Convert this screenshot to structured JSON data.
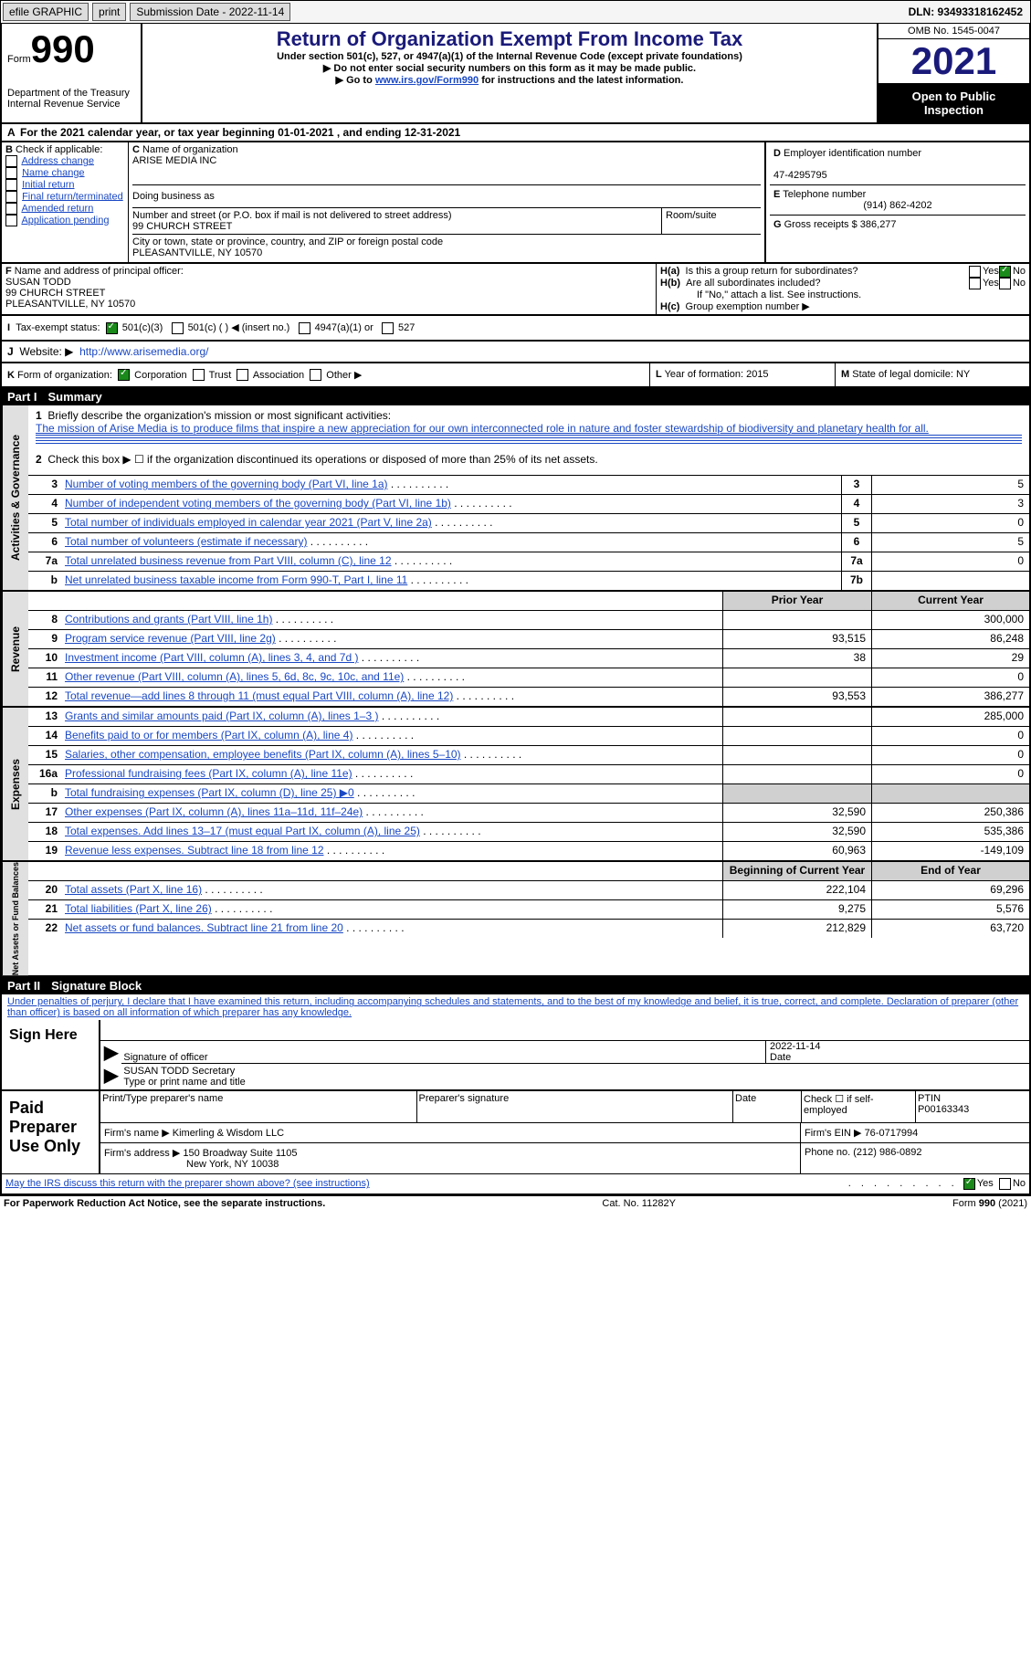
{
  "topbar": {
    "efile_label": "efile GRAPHIC",
    "print_btn": "print",
    "submission_label": "Submission Date - 2022-11-14",
    "dln": "DLN: 93493318162452"
  },
  "header": {
    "form_label": "Form",
    "form_no": "990",
    "dept": "Department of the Treasury",
    "irs": "Internal Revenue Service",
    "title": "Return of Organization Exempt From Income Tax",
    "subtitle": "Under section 501(c), 527, or 4947(a)(1) of the Internal Revenue Code (except private foundations)",
    "note1": "Do not enter social security numbers on this form as it may be made public.",
    "note2_pre": "Go to ",
    "note2_link": "www.irs.gov/Form990",
    "note2_post": " for instructions and the latest information.",
    "omb": "OMB No. 1545-0047",
    "year": "2021",
    "open": "Open to Public Inspection"
  },
  "line_a": "For the 2021 calendar year, or tax year beginning 01-01-2021   , and ending 12-31-2021",
  "box_b": {
    "label": "Check if applicable:",
    "items": [
      "Address change",
      "Name change",
      "Initial return",
      "Final return/terminated",
      "Amended return",
      "Application pending"
    ]
  },
  "box_c": {
    "name_label": "Name of organization",
    "name": "ARISE MEDIA INC",
    "dba_label": "Doing business as",
    "dba": "",
    "street_label": "Number and street (or P.O. box if mail is not delivered to street address)",
    "street": "99 CHURCH STREET",
    "room_label": "Room/suite",
    "room": "",
    "city_label": "City or town, state or province, country, and ZIP or foreign postal code",
    "city": "PLEASANTVILLE, NY  10570"
  },
  "box_d": {
    "label": "Employer identification number",
    "val": "47-4295795"
  },
  "box_e": {
    "label": "Telephone number",
    "val": "(914) 862-4202"
  },
  "box_g": {
    "label": "Gross receipts $",
    "val": "386,277"
  },
  "box_f": {
    "label": "Name and address of principal officer:",
    "name": "SUSAN TODD",
    "street": "99 CHURCH STREET",
    "city": "PLEASANTVILLE, NY  10570"
  },
  "box_h": {
    "ha": "Is this a group return for subordinates?",
    "hb": "Are all subordinates included?",
    "hb_note": "If \"No,\" attach a list. See instructions.",
    "hc": "Group exemption number ▶"
  },
  "box_i": {
    "label": "Tax-exempt status:",
    "opts": [
      "501(c)(3)",
      "501(c) (  ) ◀ (insert no.)",
      "4947(a)(1) or",
      "527"
    ]
  },
  "box_j": {
    "label": "Website: ▶",
    "val": "http://www.arisemedia.org/"
  },
  "box_k": {
    "label": "Form of organization:",
    "opts": [
      "Corporation",
      "Trust",
      "Association",
      "Other ▶"
    ]
  },
  "box_l": {
    "label": "Year of formation:",
    "val": "2015"
  },
  "box_m": {
    "label": "State of legal domicile:",
    "val": "NY"
  },
  "part1": {
    "title": "Summary",
    "q1_label": "Briefly describe the organization's mission or most significant activities:",
    "q1_text": "The mission of Arise Media is to produce films that inspire a new appreciation for our own interconnected role in nature and foster stewardship of biodiversity and planetary health for all.",
    "q2": "Check this box ▶ ☐ if the organization discontinued its operations or disposed of more than 25% of its net assets.",
    "rows_gov": [
      {
        "n": "3",
        "d": "Number of voting members of the governing body (Part VI, line 1a)",
        "box": "3",
        "v": "5"
      },
      {
        "n": "4",
        "d": "Number of independent voting members of the governing body (Part VI, line 1b)",
        "box": "4",
        "v": "3"
      },
      {
        "n": "5",
        "d": "Total number of individuals employed in calendar year 2021 (Part V, line 2a)",
        "box": "5",
        "v": "0"
      },
      {
        "n": "6",
        "d": "Total number of volunteers (estimate if necessary)",
        "box": "6",
        "v": "5"
      },
      {
        "n": "7a",
        "d": "Total unrelated business revenue from Part VIII, column (C), line 12",
        "box": "7a",
        "v": "0"
      },
      {
        "n": "b",
        "d": "Net unrelated business taxable income from Form 990-T, Part I, line 11",
        "box": "7b",
        "v": ""
      }
    ],
    "col_prior": "Prior Year",
    "col_curr": "Current Year",
    "rows_rev": [
      {
        "n": "8",
        "d": "Contributions and grants (Part VIII, line 1h)",
        "p": "",
        "c": "300,000"
      },
      {
        "n": "9",
        "d": "Program service revenue (Part VIII, line 2g)",
        "p": "93,515",
        "c": "86,248"
      },
      {
        "n": "10",
        "d": "Investment income (Part VIII, column (A), lines 3, 4, and 7d )",
        "p": "38",
        "c": "29"
      },
      {
        "n": "11",
        "d": "Other revenue (Part VIII, column (A), lines 5, 6d, 8c, 9c, 10c, and 11e)",
        "p": "",
        "c": "0"
      },
      {
        "n": "12",
        "d": "Total revenue—add lines 8 through 11 (must equal Part VIII, column (A), line 12)",
        "p": "93,553",
        "c": "386,277"
      }
    ],
    "rows_exp": [
      {
        "n": "13",
        "d": "Grants and similar amounts paid (Part IX, column (A), lines 1–3 )",
        "p": "",
        "c": "285,000"
      },
      {
        "n": "14",
        "d": "Benefits paid to or for members (Part IX, column (A), line 4)",
        "p": "",
        "c": "0"
      },
      {
        "n": "15",
        "d": "Salaries, other compensation, employee benefits (Part IX, column (A), lines 5–10)",
        "p": "",
        "c": "0"
      },
      {
        "n": "16a",
        "d": "Professional fundraising fees (Part IX, column (A), line 11e)",
        "p": "",
        "c": "0"
      },
      {
        "n": "b",
        "d": "Total fundraising expenses (Part IX, column (D), line 25) ▶0",
        "p": "shade",
        "c": "shade"
      },
      {
        "n": "17",
        "d": "Other expenses (Part IX, column (A), lines 11a–11d, 11f–24e)",
        "p": "32,590",
        "c": "250,386"
      },
      {
        "n": "18",
        "d": "Total expenses. Add lines 13–17 (must equal Part IX, column (A), line 25)",
        "p": "32,590",
        "c": "535,386"
      },
      {
        "n": "19",
        "d": "Revenue less expenses. Subtract line 18 from line 12",
        "p": "60,963",
        "c": "-149,109"
      }
    ],
    "col_begin": "Beginning of Current Year",
    "col_end": "End of Year",
    "rows_net": [
      {
        "n": "20",
        "d": "Total assets (Part X, line 16)",
        "p": "222,104",
        "c": "69,296"
      },
      {
        "n": "21",
        "d": "Total liabilities (Part X, line 26)",
        "p": "9,275",
        "c": "5,576"
      },
      {
        "n": "22",
        "d": "Net assets or fund balances. Subtract line 21 from line 20",
        "p": "212,829",
        "c": "63,720"
      }
    ],
    "side_labels": {
      "gov": "Activities & Governance",
      "rev": "Revenue",
      "exp": "Expenses",
      "net": "Net Assets or Fund Balances"
    }
  },
  "part2": {
    "title": "Signature Block",
    "decl": "Under penalties of perjury, I declare that I have examined this return, including accompanying schedules and statements, and to the best of my knowledge and belief, it is true, correct, and complete. Declaration of preparer (other than officer) is based on all information of which preparer has any knowledge.",
    "sign_here": "Sign Here",
    "sig_officer_label": "Signature of officer",
    "sig_date": "2022-11-14",
    "date_label": "Date",
    "officer_name": "SUSAN TODD Secretary",
    "officer_type_label": "Type or print name and title",
    "paid_label": "Paid Preparer Use Only",
    "prep_name_label": "Print/Type preparer's name",
    "prep_sig_label": "Preparer's signature",
    "prep_date_label": "Date",
    "check_self": "Check ☐ if self-employed",
    "ptin_label": "PTIN",
    "ptin": "P00163343",
    "firm_name_label": "Firm's name ▶",
    "firm_name": "Kimerling & Wisdom LLC",
    "firm_ein_label": "Firm's EIN ▶",
    "firm_ein": "76-0717994",
    "firm_addr_label": "Firm's address ▶",
    "firm_addr1": "150 Broadway Suite 1105",
    "firm_addr2": "New York, NY  10038",
    "phone_label": "Phone no.",
    "phone": "(212) 986-0892",
    "may_irs": "May the IRS discuss this return with the preparer shown above? (see instructions)",
    "yes": "Yes",
    "no": "No"
  },
  "footer": {
    "pra": "For Paperwork Reduction Act Notice, see the separate instructions.",
    "cat": "Cat. No. 11282Y",
    "form": "Form 990 (2021)"
  }
}
